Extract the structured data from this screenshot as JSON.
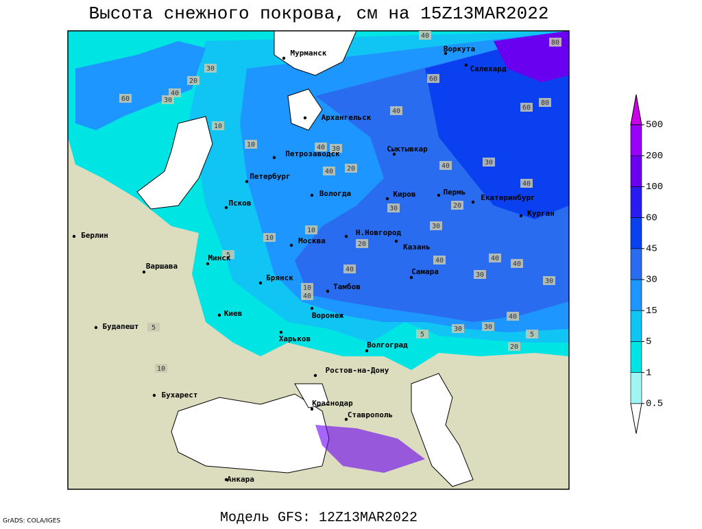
{
  "title": "Высота снежного покрова, см на 15Z13MAR2022",
  "footer": "Модель GFS: 12Z13MAR2022",
  "credit": "GrADS: COLA/IGES",
  "legend": {
    "levels": [
      0.5,
      1,
      5,
      15,
      30,
      45,
      60,
      100,
      200,
      500
    ],
    "colors": [
      "#ffffff",
      "#a0f4f4",
      "#00e4e4",
      "#10c4f4",
      "#1e96ff",
      "#2a6cf0",
      "#0a40f0",
      "#2a1cf0",
      "#6a00f0",
      "#9a00f8",
      "#cc00e8"
    ]
  },
  "cities": [
    "Мурманск",
    "Воркута",
    "Салехард",
    "Архангельск",
    "Петрозаводск",
    "Сыктывкар",
    "Петербург",
    "Вологда",
    "Киров",
    "Пермь",
    "Екатеринбург",
    "Курган",
    "Псков",
    "Берлин",
    "Н.Новгород",
    "Казань",
    "Москва",
    "Минск",
    "Варшава",
    "Самара",
    "Брянск",
    "Тамбов",
    "Воронеж",
    "Киев",
    "Будапешт",
    "Харьков",
    "Волгоград",
    "Ростов-на-Дону",
    "Бухарест",
    "Краснодар",
    "Ставрополь",
    "Анкара"
  ],
  "contour_labels": [
    40,
    80,
    60,
    80,
    60,
    40,
    30,
    20,
    40,
    60,
    30,
    40,
    20,
    10,
    10,
    30,
    40,
    30,
    40,
    40,
    30,
    20,
    30,
    10,
    5,
    10,
    20,
    40,
    40,
    30,
    40,
    40,
    30,
    40,
    30,
    40,
    30,
    20,
    5,
    10,
    10,
    5,
    5
  ]
}
